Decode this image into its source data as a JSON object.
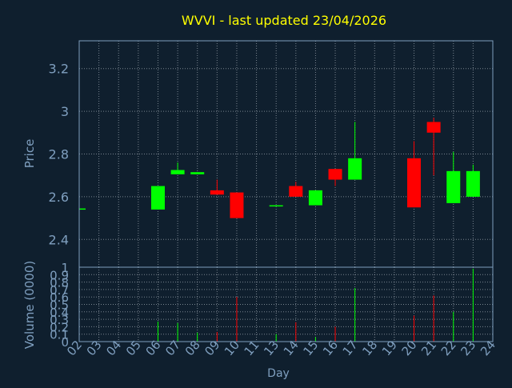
{
  "chart_data": {
    "type": "candlestick",
    "title": "WVVI - last updated 23/04/2026",
    "xlabel": "Day",
    "x_tick_labels": [
      "02",
      "03",
      "04",
      "05",
      "06",
      "07",
      "08",
      "09",
      "10",
      "11",
      "13",
      "14",
      "15",
      "16",
      "17",
      "18",
      "19",
      "20",
      "21",
      "22",
      "23",
      "24"
    ],
    "price_panel": {
      "ylabel": "Price",
      "ylim": [
        2.27,
        3.33
      ],
      "y_ticks": [
        2.4,
        2.6,
        2.8,
        3.0,
        3.2
      ],
      "y_tick_labels": [
        "2.4",
        "2.6",
        "2.8",
        "3",
        "3.2"
      ],
      "grid": true,
      "candles": [
        {
          "day": "02",
          "open": 2.54,
          "close": 2.545,
          "high": 2.545,
          "low": 2.54,
          "direction": "up"
        },
        {
          "day": "06",
          "open": 2.54,
          "close": 2.65,
          "high": 2.65,
          "low": 2.54,
          "direction": "up"
        },
        {
          "day": "07",
          "open": 2.705,
          "close": 2.725,
          "high": 2.76,
          "low": 2.705,
          "direction": "up"
        },
        {
          "day": "08",
          "open": 2.705,
          "close": 2.715,
          "high": 2.715,
          "low": 2.705,
          "direction": "up"
        },
        {
          "day": "09",
          "open": 2.63,
          "close": 2.61,
          "high": 2.68,
          "low": 2.61,
          "direction": "down"
        },
        {
          "day": "10",
          "open": 2.62,
          "close": 2.5,
          "high": 2.62,
          "low": 2.5,
          "direction": "down"
        },
        {
          "day": "13",
          "open": 2.555,
          "close": 2.56,
          "high": 2.56,
          "low": 2.555,
          "direction": "up"
        },
        {
          "day": "14",
          "open": 2.65,
          "close": 2.6,
          "high": 2.67,
          "low": 2.6,
          "direction": "down"
        },
        {
          "day": "15",
          "open": 2.56,
          "close": 2.63,
          "high": 2.63,
          "low": 2.56,
          "direction": "up"
        },
        {
          "day": "16",
          "open": 2.73,
          "close": 2.68,
          "high": 2.73,
          "low": 2.65,
          "direction": "down"
        },
        {
          "day": "17",
          "open": 2.68,
          "close": 2.78,
          "high": 2.95,
          "low": 2.68,
          "direction": "up"
        },
        {
          "day": "20",
          "open": 2.78,
          "close": 2.55,
          "high": 2.86,
          "low": 2.55,
          "direction": "down"
        },
        {
          "day": "21",
          "open": 2.95,
          "close": 2.9,
          "high": 2.97,
          "low": 2.7,
          "direction": "down"
        },
        {
          "day": "22",
          "open": 2.57,
          "close": 2.72,
          "high": 2.81,
          "low": 2.57,
          "direction": "up"
        },
        {
          "day": "23",
          "open": 2.6,
          "close": 2.72,
          "high": 2.75,
          "low": 2.6,
          "direction": "up"
        }
      ]
    },
    "volume_panel": {
      "ylabel": "Volume (0000)",
      "ylim": [
        0,
        1
      ],
      "y_ticks": [
        0,
        0.1,
        0.2,
        0.3,
        0.4,
        0.5,
        0.6,
        0.7,
        0.8,
        0.9,
        1
      ],
      "y_tick_labels": [
        "0",
        "0.1",
        "0.2",
        "0.3",
        "0.4",
        "0.5",
        "0.6",
        "0.7",
        "0.8",
        "0.9",
        "1"
      ],
      "grid": true,
      "bars": [
        {
          "day": "02",
          "value": 0.01,
          "direction": "up"
        },
        {
          "day": "06",
          "value": 0.27,
          "direction": "up"
        },
        {
          "day": "07",
          "value": 0.25,
          "direction": "up"
        },
        {
          "day": "08",
          "value": 0.12,
          "direction": "up"
        },
        {
          "day": "09",
          "value": 0.13,
          "direction": "down"
        },
        {
          "day": "10",
          "value": 0.6,
          "direction": "down"
        },
        {
          "day": "13",
          "value": 0.1,
          "direction": "up"
        },
        {
          "day": "14",
          "value": 0.26,
          "direction": "down"
        },
        {
          "day": "15",
          "value": 0.06,
          "direction": "up"
        },
        {
          "day": "16",
          "value": 0.2,
          "direction": "down"
        },
        {
          "day": "17",
          "value": 0.72,
          "direction": "up"
        },
        {
          "day": "20",
          "value": 0.35,
          "direction": "down"
        },
        {
          "day": "21",
          "value": 0.62,
          "direction": "down"
        },
        {
          "day": "22",
          "value": 0.4,
          "direction": "up"
        },
        {
          "day": "23",
          "value": 0.98,
          "direction": "up"
        }
      ]
    },
    "colors": {
      "background": "#0f1f2e",
      "title": "#ffff00",
      "axis_text": "#7f9fbf",
      "frame": "#7f9fbf",
      "grid": "#c0c8d0",
      "up": "#00ff00",
      "down": "#ff0000"
    }
  }
}
